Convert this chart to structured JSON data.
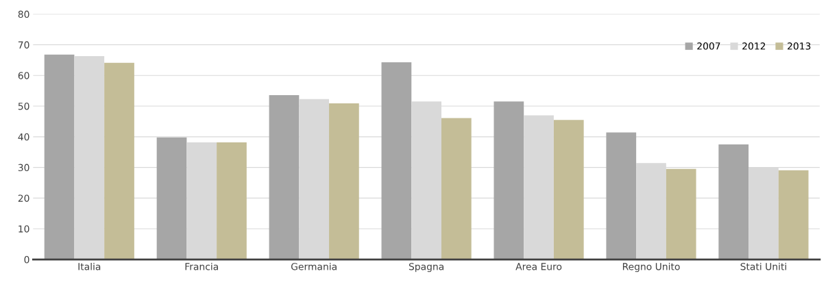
{
  "chart_data": {
    "type": "bar",
    "categories": [
      "Italia",
      "Francia",
      "Germania",
      "Spagna",
      "Area Euro",
      "Regno Unito",
      "Stati Uniti"
    ],
    "series": [
      {
        "name": "2007",
        "color": "#a6a6a6",
        "values": [
          66.8,
          39.8,
          53.6,
          64.3,
          51.5,
          41.4,
          37.5
        ]
      },
      {
        "name": "2012",
        "color": "#d9d9d9",
        "values": [
          66.3,
          38.2,
          52.3,
          51.5,
          47.0,
          31.4,
          30.0
        ]
      },
      {
        "name": "2013",
        "color": "#c4bd97",
        "values": [
          64.1,
          38.2,
          50.9,
          46.1,
          45.5,
          29.5,
          29.1
        ]
      }
    ],
    "ylim": [
      0,
      80
    ],
    "yticks": [
      0,
      10,
      20,
      30,
      40,
      50,
      60,
      70,
      80
    ],
    "grid": "y",
    "legend": "top right"
  }
}
